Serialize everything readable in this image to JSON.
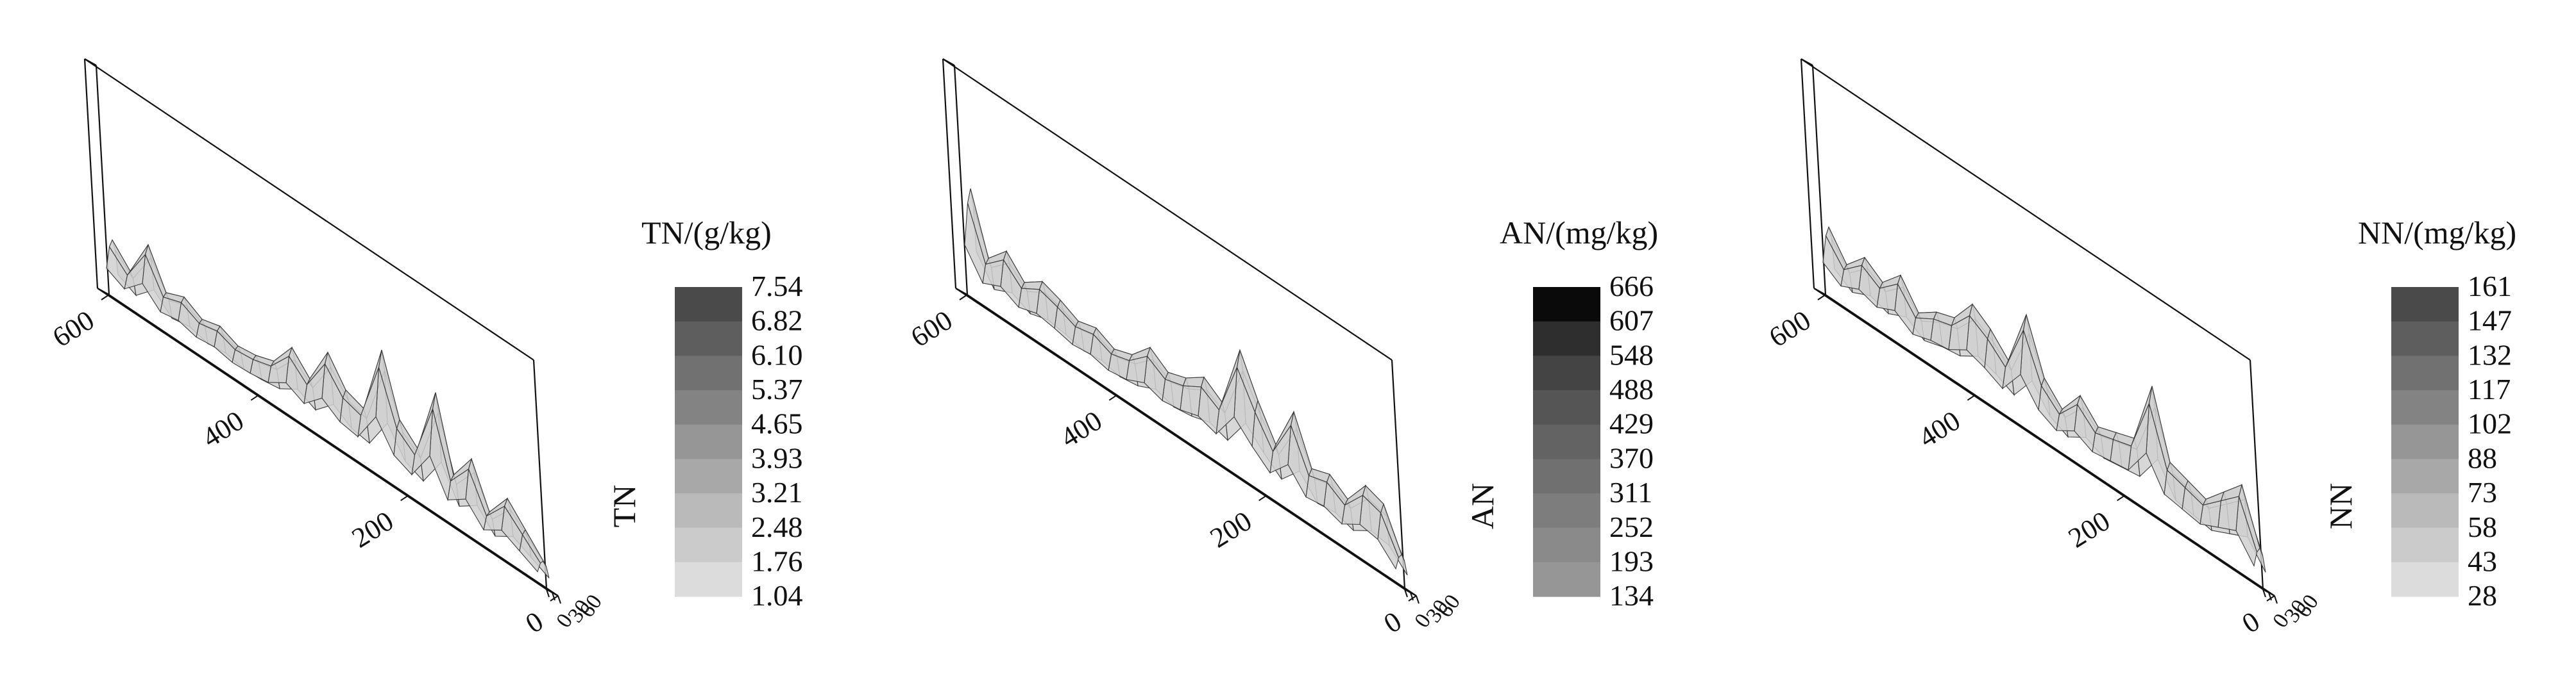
{
  "chart_data": [
    {
      "type": "surface3d",
      "zlabel": "TN",
      "colorbar": {
        "title": "TN/(g/kg)",
        "ticks": [
          "7.54",
          "6.82",
          "6.10",
          "5.37",
          "4.65",
          "3.93",
          "3.21",
          "2.48",
          "1.76",
          "1.04"
        ],
        "colors": [
          "#4a4a4a",
          "#5e5e5e",
          "#717171",
          "#838383",
          "#969696",
          "#a8a8a8",
          "#bababa",
          "#cbcbcb",
          "#dcdcdc"
        ]
      },
      "y_ticks": [
        "0",
        "200",
        "400",
        "600"
      ],
      "x_ticks": [
        "0",
        "30",
        "60"
      ],
      "profile": [
        0.2,
        0.35,
        0.5,
        0.3,
        0.62,
        0.4,
        0.95,
        0.42,
        0.55,
        1.0,
        0.45,
        0.5,
        0.7,
        0.4,
        0.55,
        0.35,
        0.3,
        0.28,
        0.34,
        0.3,
        0.38,
        0.32,
        0.6,
        0.3,
        0.45
      ]
    },
    {
      "type": "surface3d",
      "zlabel": "AN",
      "colorbar": {
        "title": "AN/(mg/kg)",
        "ticks": [
          "666",
          "607",
          "548",
          "488",
          "429",
          "370",
          "311",
          "252",
          "193",
          "134"
        ],
        "colors": [
          "#0a0a0a",
          "#2e2e2e",
          "#444444",
          "#555555",
          "#636363",
          "#707070",
          "#7d7d7d",
          "#8a8a8a",
          "#969696"
        ]
      },
      "y_ticks": [
        "0",
        "200",
        "400",
        "600"
      ],
      "x_ticks": [
        "0",
        "30",
        "60"
      ],
      "profile": [
        0.25,
        0.55,
        0.6,
        0.4,
        0.5,
        0.45,
        0.8,
        0.45,
        0.7,
        1.0,
        0.5,
        0.6,
        0.5,
        0.45,
        0.55,
        0.4,
        0.35,
        0.42,
        0.38,
        0.45,
        0.5,
        0.4,
        0.55,
        0.4,
        0.85
      ]
    },
    {
      "type": "surface3d",
      "zlabel": "NN",
      "colorbar": {
        "title": "NN/(mg/kg)",
        "ticks": [
          "161",
          "147",
          "132",
          "117",
          "102",
          "88",
          "73",
          "58",
          "43",
          "28"
        ],
        "colors": [
          "#4a4a4a",
          "#5e5e5e",
          "#717171",
          "#838383",
          "#969696",
          "#a8a8a8",
          "#bababa",
          "#cbcbcb",
          "#dcdcdc"
        ]
      },
      "y_ticks": [
        "0",
        "200",
        "400",
        "600"
      ],
      "x_ticks": [
        "0",
        "30",
        "60"
      ],
      "profile": [
        0.3,
        0.7,
        0.55,
        0.4,
        0.45,
        0.5,
        1.0,
        0.5,
        0.45,
        0.4,
        0.55,
        0.35,
        0.5,
        0.9,
        0.45,
        0.6,
        0.7,
        0.5,
        0.45,
        0.35,
        0.55,
        0.4,
        0.5,
        0.35,
        0.55
      ]
    }
  ]
}
